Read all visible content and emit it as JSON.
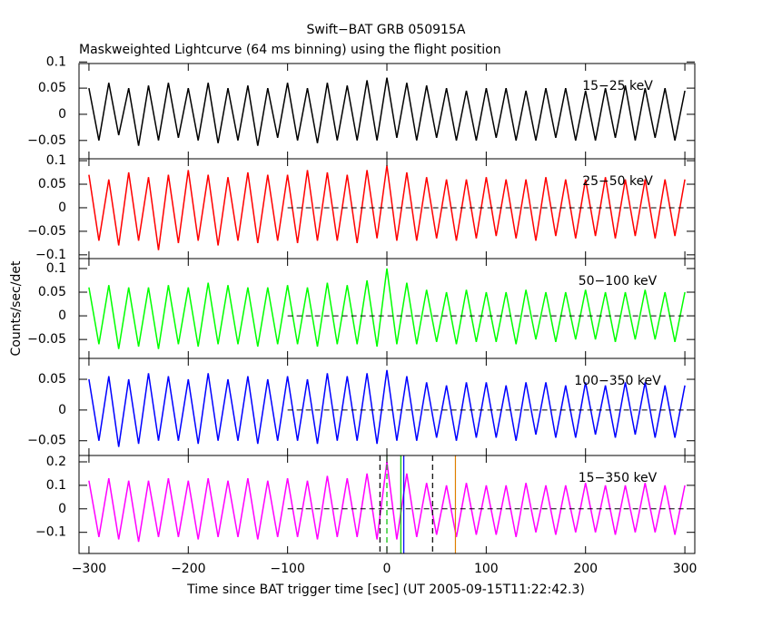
{
  "chart_data": {
    "type": "stacked-lines",
    "title": "Swift−BAT GRB 050915A",
    "subtitle": "Maskweighted Lightcurve (64 ms binning) using the flight position",
    "xlabel": "Time since BAT trigger time [sec] (UT 2005-09-15T11:22:42.3)",
    "ylabel": "Counts/sec/det",
    "xlim": [
      -310,
      310
    ],
    "xticks": [
      {
        "value": -300,
        "label": "−300"
      },
      {
        "value": -200,
        "label": "−200"
      },
      {
        "value": -100,
        "label": "−100"
      },
      0,
      100,
      200,
      300
    ],
    "zero_line_xlim": [
      -100,
      300
    ],
    "x": [
      -300,
      -290,
      -280,
      -270,
      -260,
      -250,
      -240,
      -230,
      -220,
      -210,
      -200,
      -190,
      -180,
      -170,
      -160,
      -150,
      -140,
      -130,
      -120,
      -110,
      -100,
      -90,
      -80,
      -70,
      -60,
      -50,
      -40,
      -30,
      -20,
      -10,
      0,
      10,
      20,
      30,
      40,
      50,
      60,
      70,
      80,
      90,
      100,
      110,
      120,
      130,
      140,
      150,
      160,
      170,
      180,
      190,
      200,
      210,
      220,
      230,
      240,
      250,
      260,
      270,
      280,
      290,
      300
    ],
    "series": [
      {
        "name": "15−25 keV",
        "color": "#000000",
        "zero_line": false,
        "ylim": [
          -0.085,
          0.097
        ],
        "yticks": [
          {
            "value": -0.05,
            "label": "−0.05"
          },
          0,
          0.05,
          0.1
        ],
        "values": [
          0.05,
          -0.05,
          0.06,
          -0.04,
          0.05,
          -0.06,
          0.055,
          -0.05,
          0.06,
          -0.045,
          0.05,
          -0.05,
          0.06,
          -0.055,
          0.05,
          -0.05,
          0.055,
          -0.06,
          0.05,
          -0.045,
          0.06,
          -0.05,
          0.05,
          -0.055,
          0.06,
          -0.05,
          0.055,
          -0.05,
          0.065,
          -0.05,
          0.07,
          -0.045,
          0.06,
          -0.05,
          0.055,
          -0.045,
          0.05,
          -0.05,
          0.045,
          -0.05,
          0.05,
          -0.045,
          0.05,
          -0.05,
          0.045,
          -0.05,
          0.05,
          -0.045,
          0.05,
          -0.05,
          0.045,
          -0.05,
          0.05,
          -0.045,
          0.055,
          -0.05,
          0.05,
          -0.045,
          0.05,
          -0.05,
          0.045
        ]
      },
      {
        "name": "25−50 keV",
        "color": "#ff0000",
        "zero_line": true,
        "ylim": [
          -0.108,
          0.104
        ],
        "yticks": [
          {
            "value": -0.1,
            "label": "−0.1"
          },
          {
            "value": -0.05,
            "label": "−0.05"
          },
          0,
          0.05,
          0.1
        ],
        "values": [
          0.07,
          -0.07,
          0.06,
          -0.08,
          0.075,
          -0.07,
          0.065,
          -0.09,
          0.07,
          -0.075,
          0.08,
          -0.07,
          0.07,
          -0.08,
          0.065,
          -0.07,
          0.075,
          -0.075,
          0.07,
          -0.07,
          0.07,
          -0.075,
          0.08,
          -0.07,
          0.075,
          -0.07,
          0.07,
          -0.075,
          0.08,
          -0.065,
          0.09,
          -0.07,
          0.075,
          -0.07,
          0.065,
          -0.065,
          0.06,
          -0.07,
          0.06,
          -0.065,
          0.065,
          -0.06,
          0.06,
          -0.065,
          0.06,
          -0.07,
          0.065,
          -0.06,
          0.06,
          -0.065,
          0.06,
          -0.06,
          0.065,
          -0.065,
          0.06,
          -0.06,
          0.06,
          -0.065,
          0.06,
          -0.06,
          0.06
        ]
      },
      {
        "name": "50−100 keV",
        "color": "#00ff00",
        "zero_line": true,
        "ylim": [
          -0.09,
          0.121
        ],
        "yticks": [
          {
            "value": -0.05,
            "label": "−0.05"
          },
          0,
          0.05,
          0.1
        ],
        "values": [
          0.06,
          -0.06,
          0.065,
          -0.07,
          0.06,
          -0.065,
          0.06,
          -0.07,
          0.065,
          -0.06,
          0.06,
          -0.065,
          0.07,
          -0.06,
          0.065,
          -0.06,
          0.06,
          -0.065,
          0.06,
          -0.06,
          0.065,
          -0.06,
          0.06,
          -0.065,
          0.07,
          -0.06,
          0.065,
          -0.06,
          0.075,
          -0.065,
          0.1,
          -0.06,
          0.07,
          -0.06,
          0.055,
          -0.055,
          0.05,
          -0.06,
          0.055,
          -0.055,
          0.05,
          -0.055,
          0.05,
          -0.06,
          0.055,
          -0.05,
          0.05,
          -0.055,
          0.05,
          -0.05,
          0.055,
          -0.05,
          0.05,
          -0.055,
          0.05,
          -0.05,
          0.055,
          -0.05,
          0.05,
          -0.055,
          0.05
        ]
      },
      {
        "name": "100−350 keV",
        "color": "#0000ff",
        "zero_line": true,
        "ylim": [
          -0.074,
          0.084
        ],
        "yticks": [
          {
            "value": -0.05,
            "label": "−0.05"
          },
          0,
          0.05
        ],
        "values": [
          0.05,
          -0.05,
          0.055,
          -0.06,
          0.05,
          -0.055,
          0.06,
          -0.05,
          0.055,
          -0.05,
          0.05,
          -0.055,
          0.06,
          -0.05,
          0.05,
          -0.05,
          0.055,
          -0.055,
          0.05,
          -0.05,
          0.055,
          -0.05,
          0.05,
          -0.055,
          0.06,
          -0.05,
          0.055,
          -0.05,
          0.06,
          -0.055,
          0.065,
          -0.05,
          0.055,
          -0.05,
          0.045,
          -0.045,
          0.04,
          -0.05,
          0.045,
          -0.045,
          0.045,
          -0.045,
          0.04,
          -0.05,
          0.045,
          -0.04,
          0.045,
          -0.045,
          0.04,
          -0.045,
          0.045,
          -0.04,
          0.04,
          -0.045,
          0.045,
          -0.04,
          0.045,
          -0.045,
          0.04,
          -0.045,
          0.04
        ]
      },
      {
        "name": "15−350 keV",
        "color": "#ff00ff",
        "zero_line": true,
        "ylim": [
          -0.19,
          0.227
        ],
        "yticks": [
          {
            "value": -0.1,
            "label": "−0.1"
          },
          0,
          0.1,
          0.2
        ],
        "values": [
          0.12,
          -0.12,
          0.13,
          -0.13,
          0.12,
          -0.14,
          0.12,
          -0.12,
          0.13,
          -0.12,
          0.12,
          -0.13,
          0.13,
          -0.12,
          0.12,
          -0.12,
          0.13,
          -0.13,
          0.12,
          -0.12,
          0.13,
          -0.12,
          0.12,
          -0.13,
          0.14,
          -0.12,
          0.13,
          -0.12,
          0.15,
          -0.13,
          0.2,
          -0.13,
          0.15,
          -0.12,
          0.11,
          -0.11,
          0.1,
          -0.12,
          0.11,
          -0.11,
          0.1,
          -0.11,
          0.1,
          -0.12,
          0.11,
          -0.1,
          0.1,
          -0.11,
          0.1,
          -0.1,
          0.11,
          -0.1,
          0.1,
          -0.11,
          0.1,
          -0.1,
          0.11,
          -0.1,
          0.1,
          -0.11,
          0.1
        ],
        "markers": [
          {
            "x": -7,
            "color": "#000000",
            "dashed": true
          },
          {
            "x": 46,
            "color": "#000000",
            "dashed": true
          },
          {
            "x": 0,
            "color": "#00c000",
            "dashed": true
          },
          {
            "x": 14,
            "color": "#00c000",
            "dashed": false
          },
          {
            "x": 17,
            "color": "#0000ff",
            "dashed": false
          },
          {
            "x": 69,
            "color": "#e08000",
            "dashed": false
          }
        ]
      }
    ]
  }
}
